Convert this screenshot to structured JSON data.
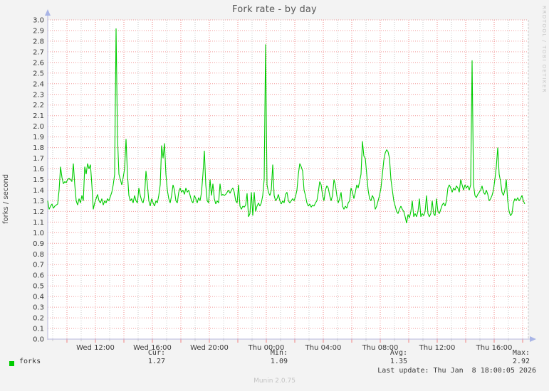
{
  "header": {
    "title": "Fork rate - by day"
  },
  "watermark_text": "RRDTOOL / TOBI OETIKER",
  "footer": {
    "version": "Munin 2.0.75"
  },
  "palette": {
    "background": "#f3f3f3",
    "plot_background": "#ffffff",
    "grid_major": "#f08080",
    "grid_minor": "#cbcbcb",
    "plot_border": "#c9c9c9",
    "axis": "#b7b7dc",
    "axis_arrow": "#a9b5e6",
    "series_green": "#00cc00",
    "text": "#3a3a3a",
    "muted_text": "#c3c3c3"
  },
  "chart_data": {
    "type": "line",
    "title": "Fork rate - by day",
    "xlabel": "",
    "ylabel": "forks / second",
    "ylim": [
      0.0,
      3.0
    ],
    "y_tick_step": 0.1,
    "grid": "on",
    "legend_position": "bottom-left",
    "x_window_hours": [
      8.65,
      42.4
    ],
    "x_tick_labels": [
      "Wed 12:00",
      "Wed 16:00",
      "Wed 20:00",
      "Thu 00:00",
      "Thu 04:00",
      "Thu 08:00",
      "Thu 12:00",
      "Thu 16:00"
    ],
    "x_tick_hours": [
      12,
      16,
      20,
      24,
      28,
      32,
      36,
      40
    ],
    "x_minor_every_hours": 1,
    "x_major_every_hours": 2,
    "series": [
      {
        "name": "forks",
        "color": "#00cc00",
        "t_start_hours": 8.65,
        "t_step_hours": 0.1,
        "values": [
          1.3,
          1.22,
          1.25,
          1.27,
          1.23,
          1.25,
          1.26,
          1.27,
          1.4,
          1.62,
          1.52,
          1.46,
          1.48,
          1.47,
          1.5,
          1.51,
          1.5,
          1.48,
          1.65,
          1.45,
          1.3,
          1.26,
          1.32,
          1.28,
          1.35,
          1.3,
          1.62,
          1.55,
          1.65,
          1.6,
          1.64,
          1.45,
          1.22,
          1.28,
          1.32,
          1.36,
          1.3,
          1.28,
          1.32,
          1.26,
          1.3,
          1.28,
          1.32,
          1.3,
          1.34,
          1.38,
          1.45,
          1.55,
          2.92,
          1.9,
          1.55,
          1.5,
          1.45,
          1.52,
          1.6,
          1.88,
          1.55,
          1.35,
          1.3,
          1.32,
          1.28,
          1.35,
          1.3,
          1.28,
          1.42,
          1.35,
          1.3,
          1.28,
          1.35,
          1.58,
          1.45,
          1.3,
          1.25,
          1.32,
          1.28,
          1.25,
          1.3,
          1.28,
          1.35,
          1.45,
          1.82,
          1.7,
          1.84,
          1.55,
          1.4,
          1.32,
          1.28,
          1.35,
          1.45,
          1.4,
          1.3,
          1.28,
          1.38,
          1.42,
          1.38,
          1.4,
          1.36,
          1.42,
          1.38,
          1.4,
          1.35,
          1.3,
          1.28,
          1.35,
          1.32,
          1.28,
          1.33,
          1.3,
          1.38,
          1.55,
          1.77,
          1.45,
          1.3,
          1.28,
          1.5,
          1.35,
          1.46,
          1.32,
          1.27,
          1.3,
          1.28,
          1.46,
          1.35,
          1.36,
          1.35,
          1.36,
          1.38,
          1.4,
          1.37,
          1.4,
          1.42,
          1.38,
          1.3,
          1.28,
          1.45,
          1.25,
          1.22,
          1.25,
          1.24,
          1.26,
          1.37,
          1.15,
          1.18,
          1.38,
          1.16,
          1.38,
          1.2,
          1.25,
          1.28,
          1.25,
          1.28,
          1.35,
          1.5,
          2.77,
          1.45,
          1.38,
          1.35,
          1.4,
          1.64,
          1.35,
          1.3,
          1.32,
          1.36,
          1.3,
          1.27,
          1.3,
          1.28,
          1.36,
          1.38,
          1.3,
          1.28,
          1.3,
          1.32,
          1.3,
          1.34,
          1.4,
          1.55,
          1.65,
          1.62,
          1.58,
          1.4,
          1.35,
          1.28,
          1.25,
          1.27,
          1.24,
          1.26,
          1.25,
          1.28,
          1.3,
          1.38,
          1.48,
          1.45,
          1.35,
          1.3,
          1.4,
          1.44,
          1.42,
          1.35,
          1.3,
          1.35,
          1.5,
          1.45,
          1.35,
          1.28,
          1.32,
          1.38,
          1.25,
          1.22,
          1.25,
          1.23,
          1.28,
          1.3,
          1.42,
          1.38,
          1.32,
          1.38,
          1.45,
          1.42,
          1.48,
          1.55,
          1.86,
          1.72,
          1.7,
          1.55,
          1.4,
          1.32,
          1.3,
          1.35,
          1.32,
          1.22,
          1.25,
          1.3,
          1.35,
          1.42,
          1.55,
          1.68,
          1.75,
          1.78,
          1.76,
          1.7,
          1.5,
          1.4,
          1.3,
          1.25,
          1.2,
          1.18,
          1.22,
          1.25,
          1.22,
          1.2,
          1.15,
          1.09,
          1.17,
          1.14,
          1.2,
          1.3,
          1.15,
          1.18,
          1.15,
          1.2,
          1.32,
          1.15,
          1.18,
          1.16,
          1.2,
          1.35,
          1.18,
          1.15,
          1.18,
          1.3,
          1.18,
          1.16,
          1.32,
          1.2,
          1.18,
          1.22,
          1.26,
          1.28,
          1.25,
          1.3,
          1.42,
          1.45,
          1.42,
          1.38,
          1.42,
          1.4,
          1.44,
          1.42,
          1.38,
          1.5,
          1.45,
          1.4,
          1.45,
          1.42,
          1.44,
          1.4,
          1.45,
          2.62,
          1.45,
          1.35,
          1.33,
          1.36,
          1.38,
          1.4,
          1.44,
          1.38,
          1.36,
          1.4,
          1.36,
          1.3,
          1.32,
          1.35,
          1.4,
          1.5,
          1.62,
          1.8,
          1.55,
          1.48,
          1.38,
          1.35,
          1.4,
          1.5,
          1.3,
          1.2,
          1.16,
          1.18,
          1.28,
          1.32,
          1.3,
          1.33,
          1.3,
          1.32,
          1.35,
          1.3,
          1.27
        ]
      }
    ],
    "legend": [
      {
        "label": "forks",
        "color": "#00cc00",
        "cur": "1.27",
        "min": "1.09",
        "avg": "1.35",
        "max": "2.92"
      }
    ],
    "stats_headers": {
      "cur": "Cur:",
      "min": "Min:",
      "avg": "Avg:",
      "max": "Max:"
    },
    "last_update": "Last update: Thu Jan  8 18:00:05 2026"
  }
}
